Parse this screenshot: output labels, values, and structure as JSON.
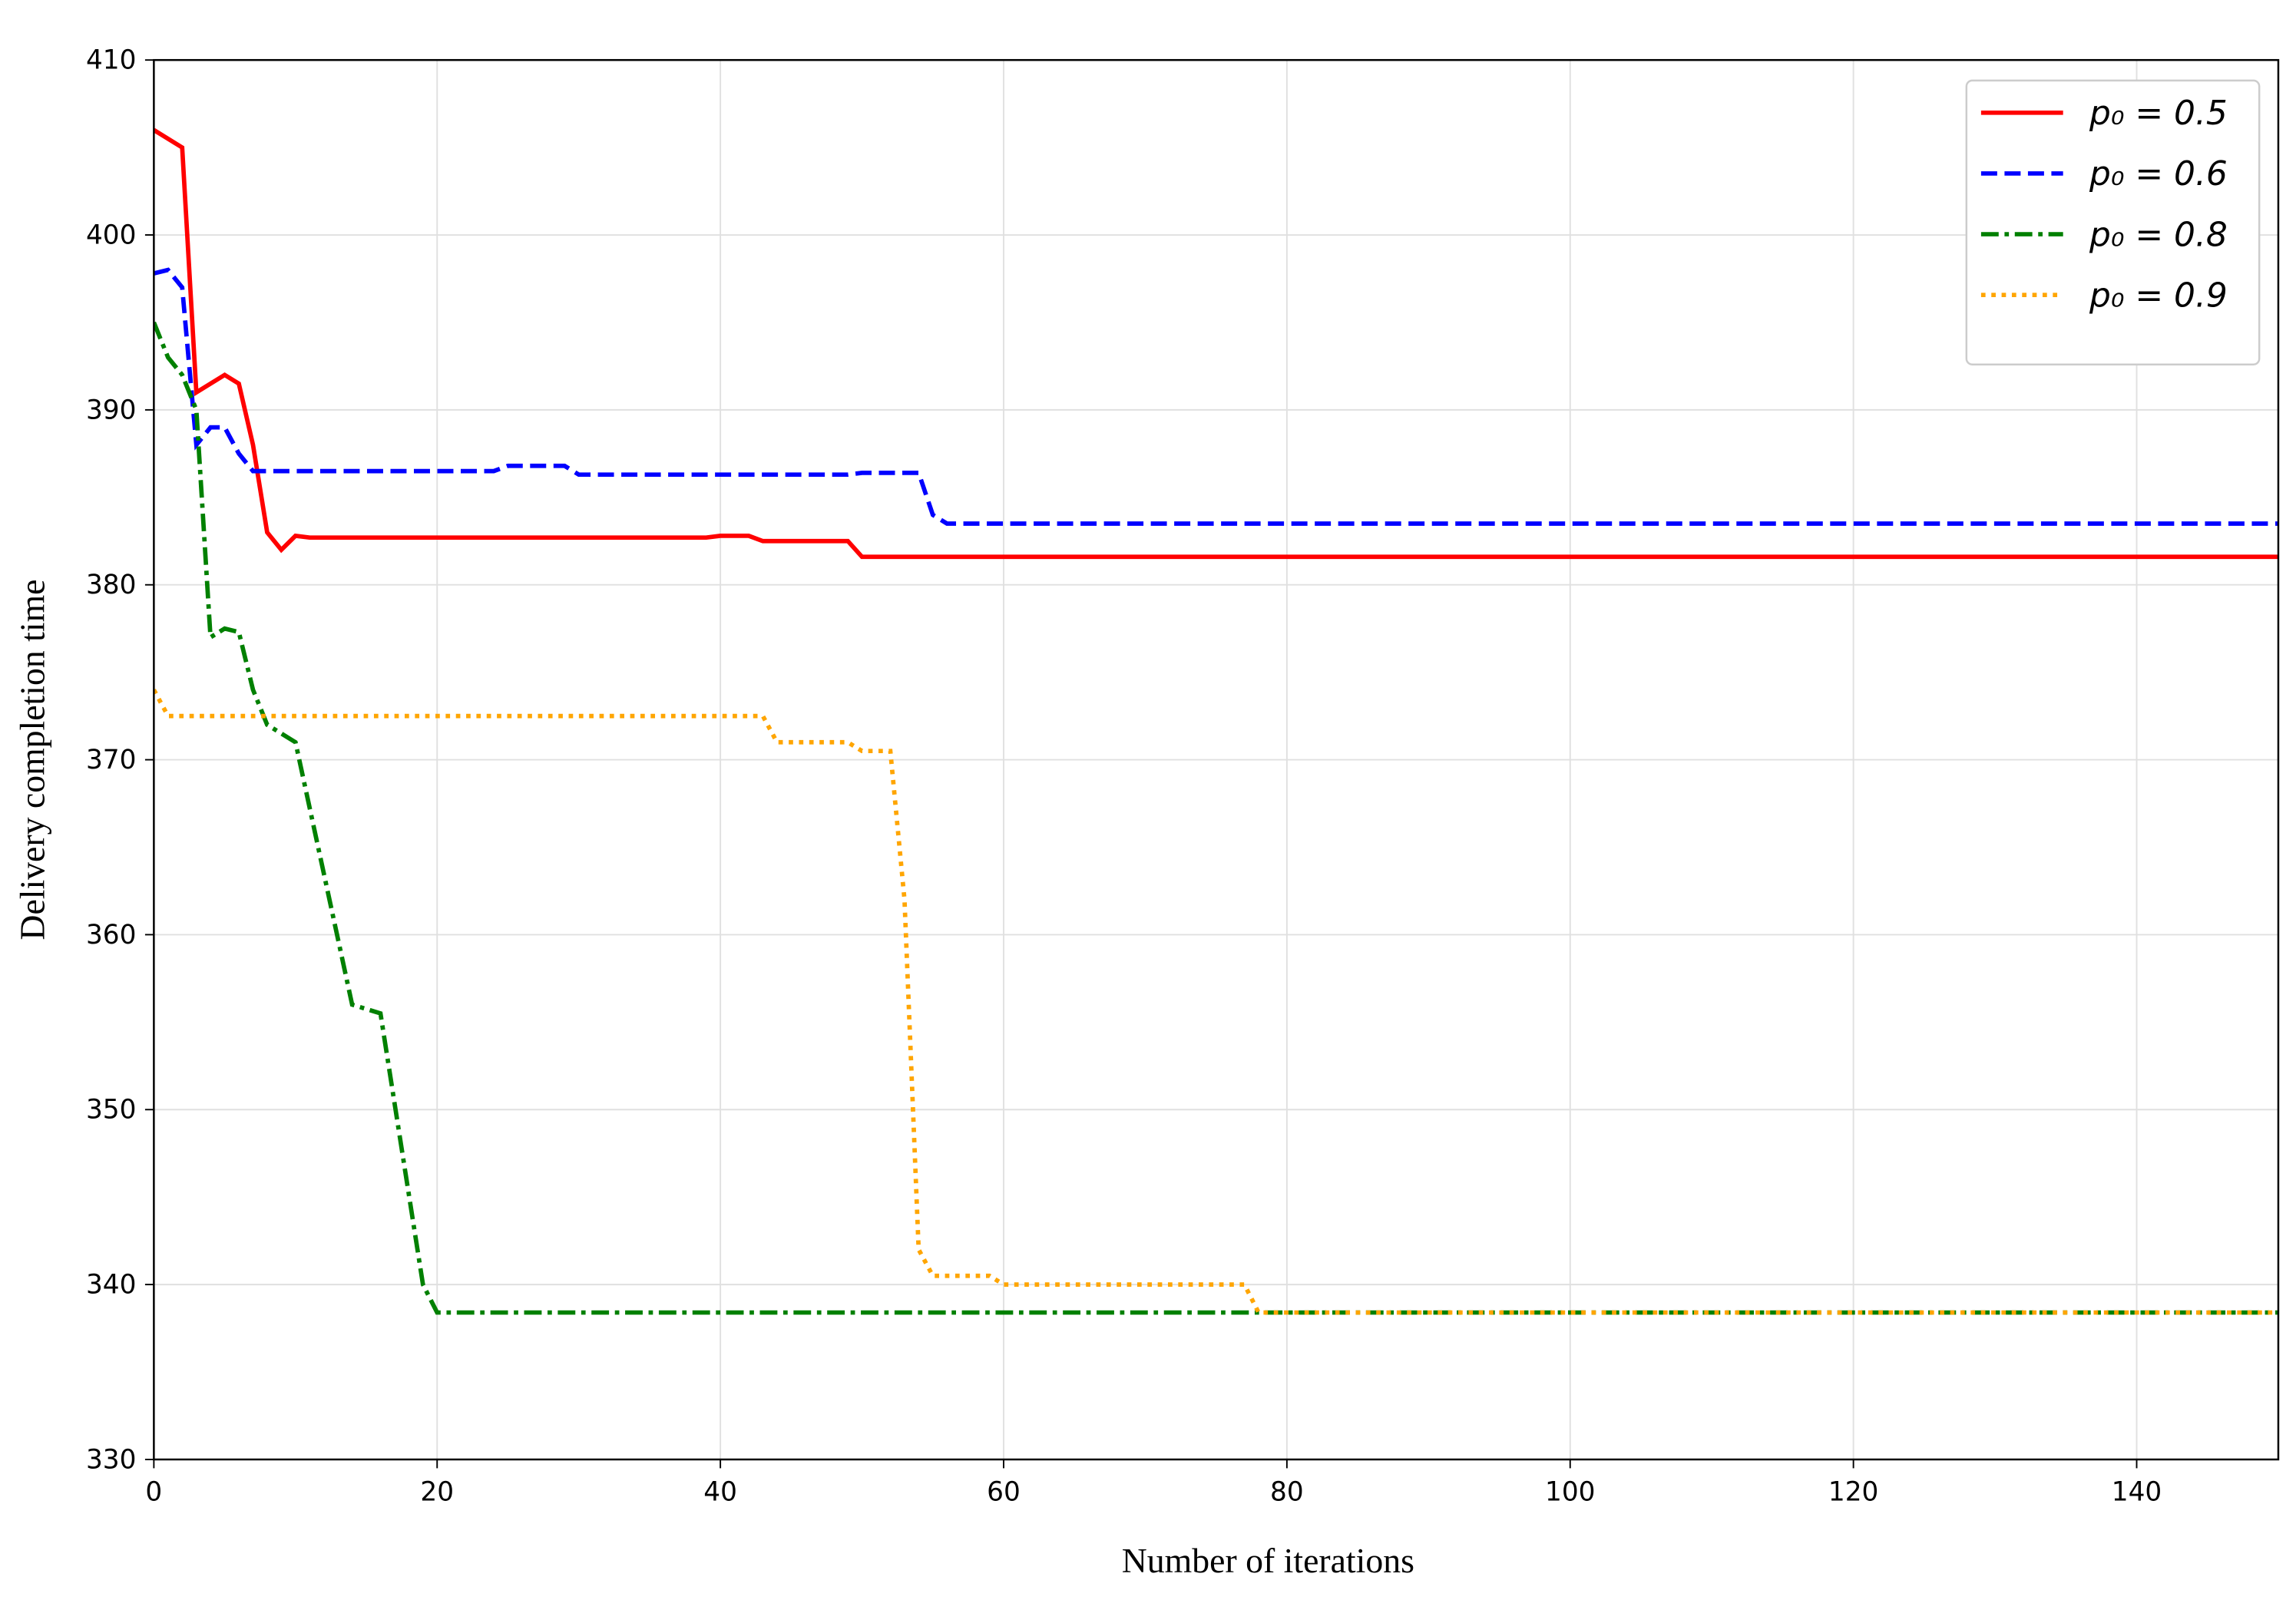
{
  "chart_data": {
    "type": "line",
    "xlabel": "Number of iterations",
    "ylabel": "Delivery completion time",
    "xlim": [
      0,
      150
    ],
    "ylim": [
      330,
      410
    ],
    "xticks": [
      0,
      20,
      40,
      60,
      80,
      100,
      120,
      140
    ],
    "yticks": [
      330,
      340,
      350,
      360,
      370,
      380,
      390,
      400,
      410
    ],
    "grid": true,
    "legend": "upper right",
    "series": [
      {
        "name": "p₀ = 0.5",
        "color": "#ff0000",
        "dash": "solid",
        "x": [
          0,
          2,
          3,
          5,
          6,
          7,
          8,
          9,
          10,
          11,
          39,
          40,
          42,
          43,
          49,
          50,
          150
        ],
        "values": [
          406,
          405,
          391,
          392,
          391.5,
          388,
          383,
          382,
          382.8,
          382.7,
          382.7,
          382.8,
          382.8,
          382.5,
          382.5,
          381.6,
          381.6
        ]
      },
      {
        "name": "p₀ = 0.6",
        "color": "#0000ff",
        "dash": "dashed",
        "x": [
          0,
          1,
          2,
          3,
          4,
          5,
          6,
          7,
          24,
          25,
          29,
          30,
          49,
          50,
          54,
          55,
          56,
          150
        ],
        "values": [
          397.8,
          398,
          397,
          388,
          389,
          389,
          387.5,
          386.5,
          386.5,
          386.8,
          386.8,
          386.3,
          386.3,
          386.4,
          386.4,
          384,
          383.5,
          383.5
        ]
      },
      {
        "name": "p₀ = 0.8",
        "color": "#008000",
        "dash": "dashdot",
        "x": [
          0,
          1,
          2,
          3,
          4,
          5,
          6,
          7,
          8,
          9,
          10,
          14,
          16,
          19,
          20,
          150
        ],
        "values": [
          395,
          393,
          392,
          390,
          377,
          377.5,
          377.3,
          374,
          372,
          371.5,
          371,
          356,
          355.5,
          340,
          338.4,
          338.4
        ]
      },
      {
        "name": "p₀ = 0.9",
        "color": "#ffa500",
        "dash": "dotted",
        "x": [
          0,
          1,
          43,
          44,
          49,
          50,
          52,
          53,
          54,
          55,
          59,
          60,
          77,
          78,
          150
        ],
        "values": [
          374,
          372.5,
          372.5,
          371,
          371,
          370.5,
          370.5,
          362,
          342,
          340.5,
          340.5,
          340,
          340,
          338.4,
          338.4
        ]
      }
    ]
  }
}
